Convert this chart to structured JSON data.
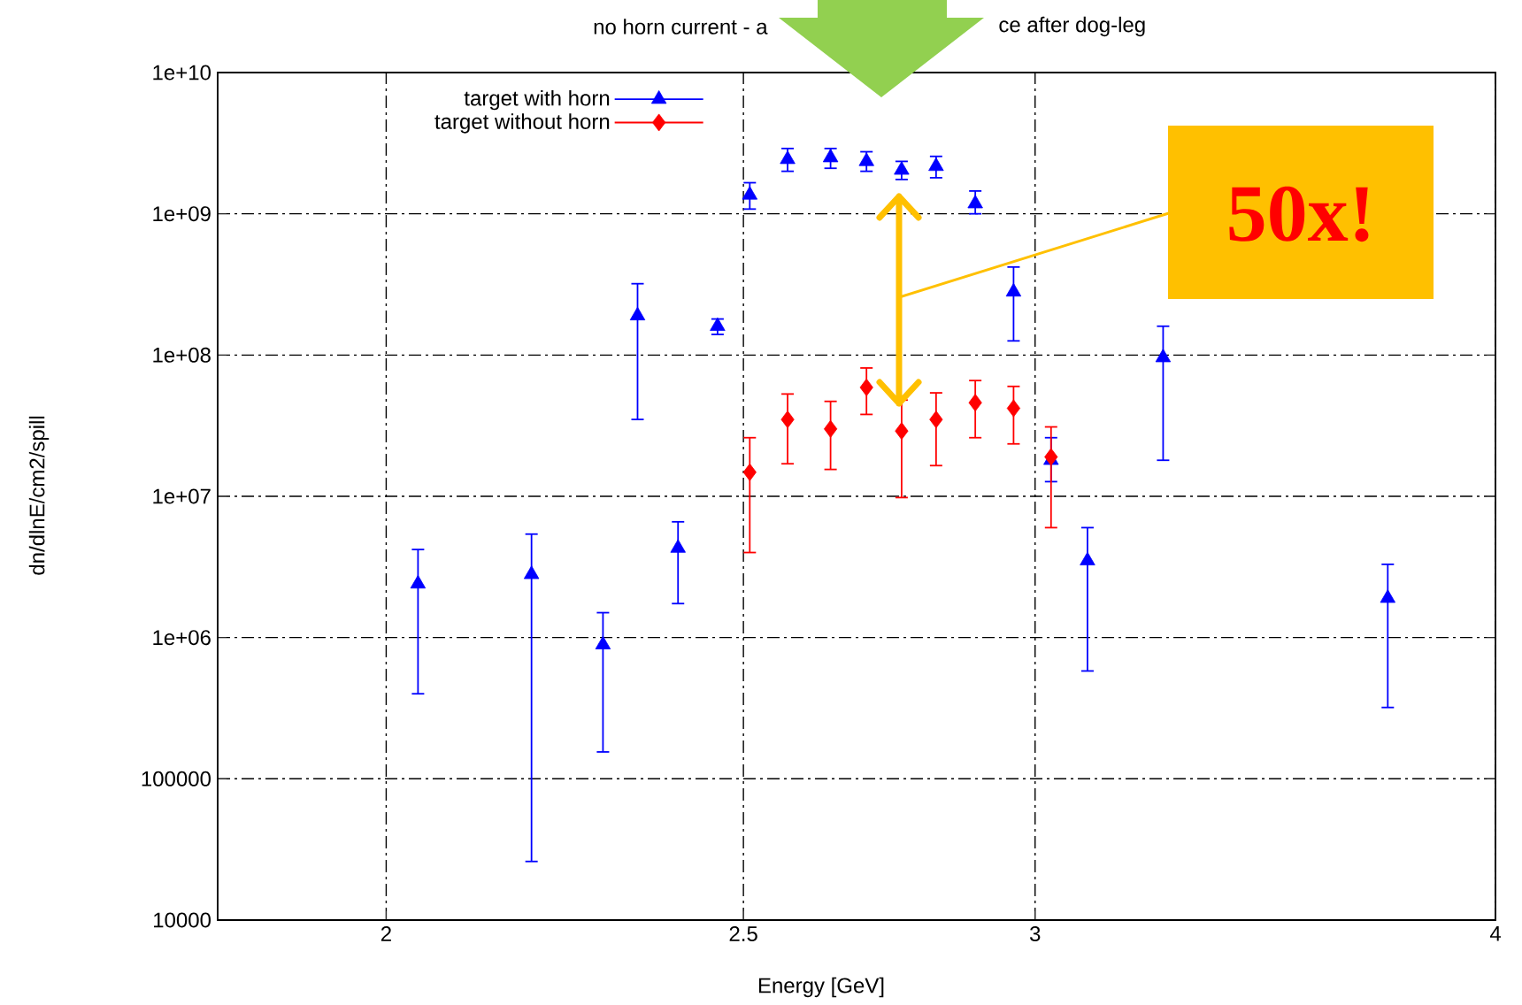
{
  "chart_data": {
    "type": "scatter",
    "title": "no horn current - a",
    "subtitle": "ce after dog-leg",
    "xlabel": "Energy [GeV]",
    "ylabel": "dn/dlnE/cm2/spill",
    "log": "xy",
    "xlim": [
      1.8,
      4
    ],
    "xticks": [
      2,
      2.5,
      3,
      4
    ],
    "ylim": [
      10000,
      10000000000
    ],
    "yticks": [
      {
        "value": 10000,
        "label": "10000"
      },
      {
        "value": 100000,
        "label": "100000"
      },
      {
        "value": 1000000,
        "label": "1e+06"
      },
      {
        "value": 10000000,
        "label": "1e+07"
      },
      {
        "value": 100000000,
        "label": "1e+08"
      },
      {
        "value": 1000000000,
        "label": "1e+09"
      },
      {
        "value": 10000000000,
        "label": "1e+10"
      }
    ],
    "grid": true,
    "legend": "top left",
    "series": [
      {
        "name": "target with horn",
        "color": "#0000ff",
        "marker": "triangle",
        "x": [
          2.04,
          2.19,
          2.29,
          2.34,
          2.4,
          2.46,
          2.51,
          2.57,
          2.64,
          2.7,
          2.76,
          2.82,
          2.89,
          2.96,
          3.03,
          3.1,
          3.25,
          3.74
        ],
        "values": [
          2400000.0,
          2800000.0,
          890000.0,
          190000000.0,
          4300000.0,
          160000000.0,
          1360000000.0,
          2430000000.0,
          2500000000.0,
          2350000000.0,
          2040000000.0,
          2170000000.0,
          1180000000.0,
          280000000.0,
          18000000.0,
          3500000.0,
          96000000.0,
          1900000.0
        ],
        "errors": [
          [
            400000.0,
            4200000.0
          ],
          [
            26000.0,
            5400000.0
          ],
          [
            155000.0,
            1500000.0
          ],
          [
            35000000.0,
            320000000.0
          ],
          [
            1740000.0,
            6600000.0
          ],
          [
            140000000.0,
            180000000.0
          ],
          [
            1080000000.0,
            1660000000.0
          ],
          [
            2000000000.0,
            2900000000.0
          ],
          [
            2100000000.0,
            2900000000.0
          ],
          [
            2000000000.0,
            2750000000.0
          ],
          [
            1750000000.0,
            2350000000.0
          ],
          [
            1800000000.0,
            2550000000.0
          ],
          [
            1000000000.0,
            1450000000.0
          ],
          [
            126000000.0,
            420000000.0
          ],
          [
            12700000.0,
            26000000.0
          ],
          [
            580000.0,
            6000000.0
          ],
          [
            18000000.0,
            160000000.0
          ],
          [
            320000.0,
            3300000.0
          ]
        ]
      },
      {
        "name": "target without horn",
        "color": "#ff0000",
        "marker": "diamond",
        "x": [
          2.51,
          2.57,
          2.64,
          2.7,
          2.76,
          2.82,
          2.89,
          2.96,
          3.03
        ],
        "values": [
          14800000.0,
          35000000.0,
          30000000.0,
          59000000.0,
          29000000.0,
          35000000.0,
          46000000.0,
          42000000.0,
          19000000.0
        ],
        "errors": [
          [
            4000000.0,
            26000000.0
          ],
          [
            17000000.0,
            53000000.0
          ],
          [
            15500000.0,
            47000000.0
          ],
          [
            38000000.0,
            81000000.0
          ],
          [
            9800000.0,
            48000000.0
          ],
          [
            16500000.0,
            54000000.0
          ],
          [
            26000000.0,
            66000000.0
          ],
          [
            23500000.0,
            60000000.0
          ],
          [
            6000000.0,
            31000000.0
          ]
        ]
      }
    ],
    "annotations": [
      "50x!"
    ]
  }
}
